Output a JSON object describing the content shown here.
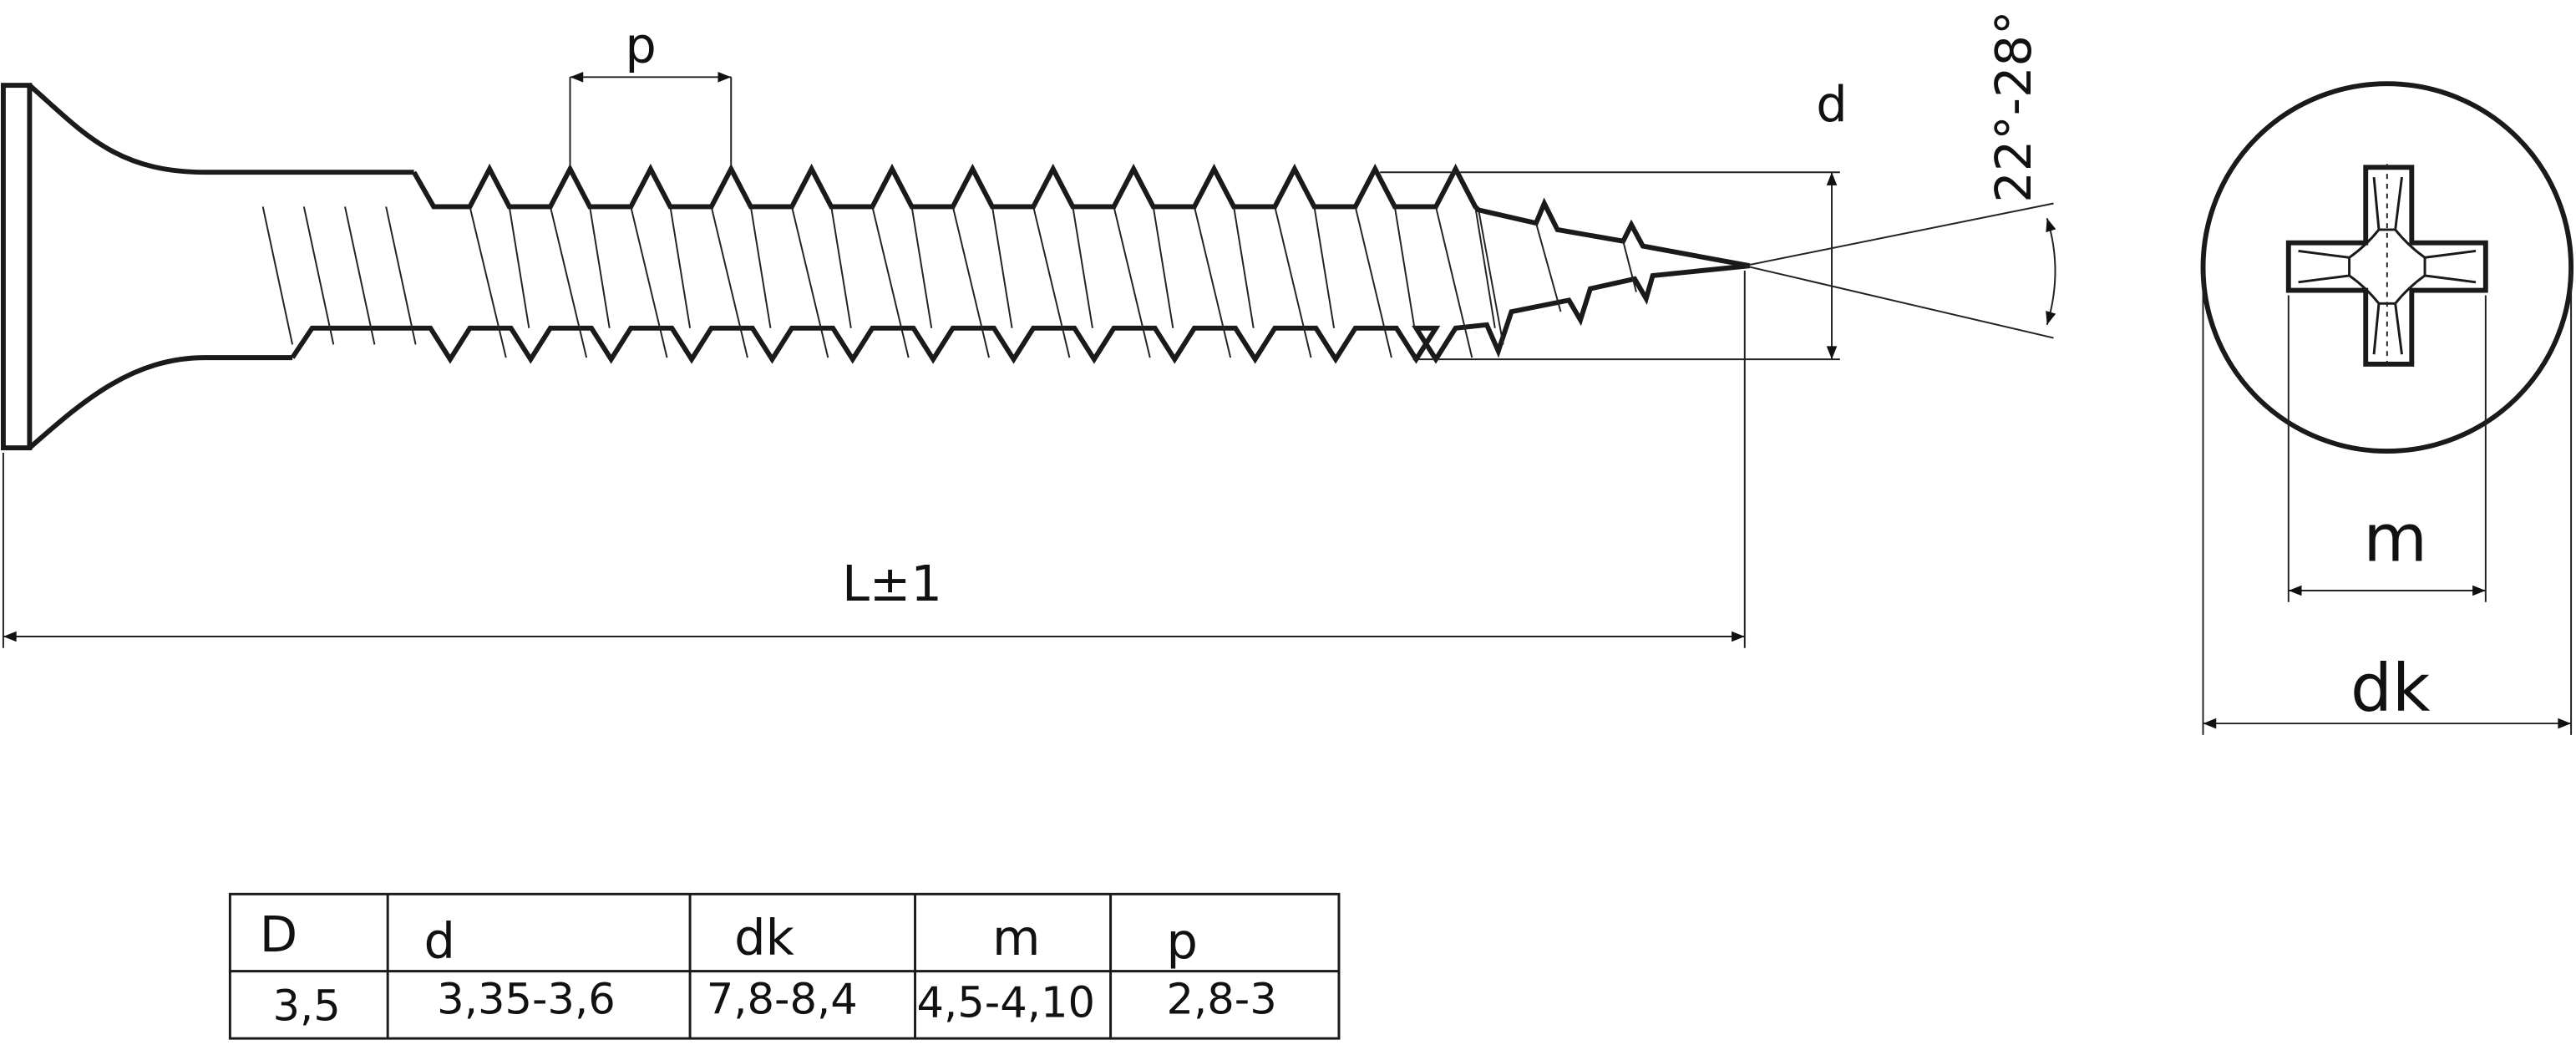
{
  "labels": {
    "pitch": "p",
    "diameter": "d",
    "angle": "22°-28°",
    "length": "L±1",
    "m": "m",
    "dk": "dk"
  },
  "table": {
    "header": [
      "D",
      "d",
      "dk",
      "m",
      "p"
    ],
    "rows": [
      [
        "3,5",
        "3,35-3,6",
        "7,8-8,4",
        "4,5-4,10",
        "2,8-3"
      ]
    ]
  }
}
